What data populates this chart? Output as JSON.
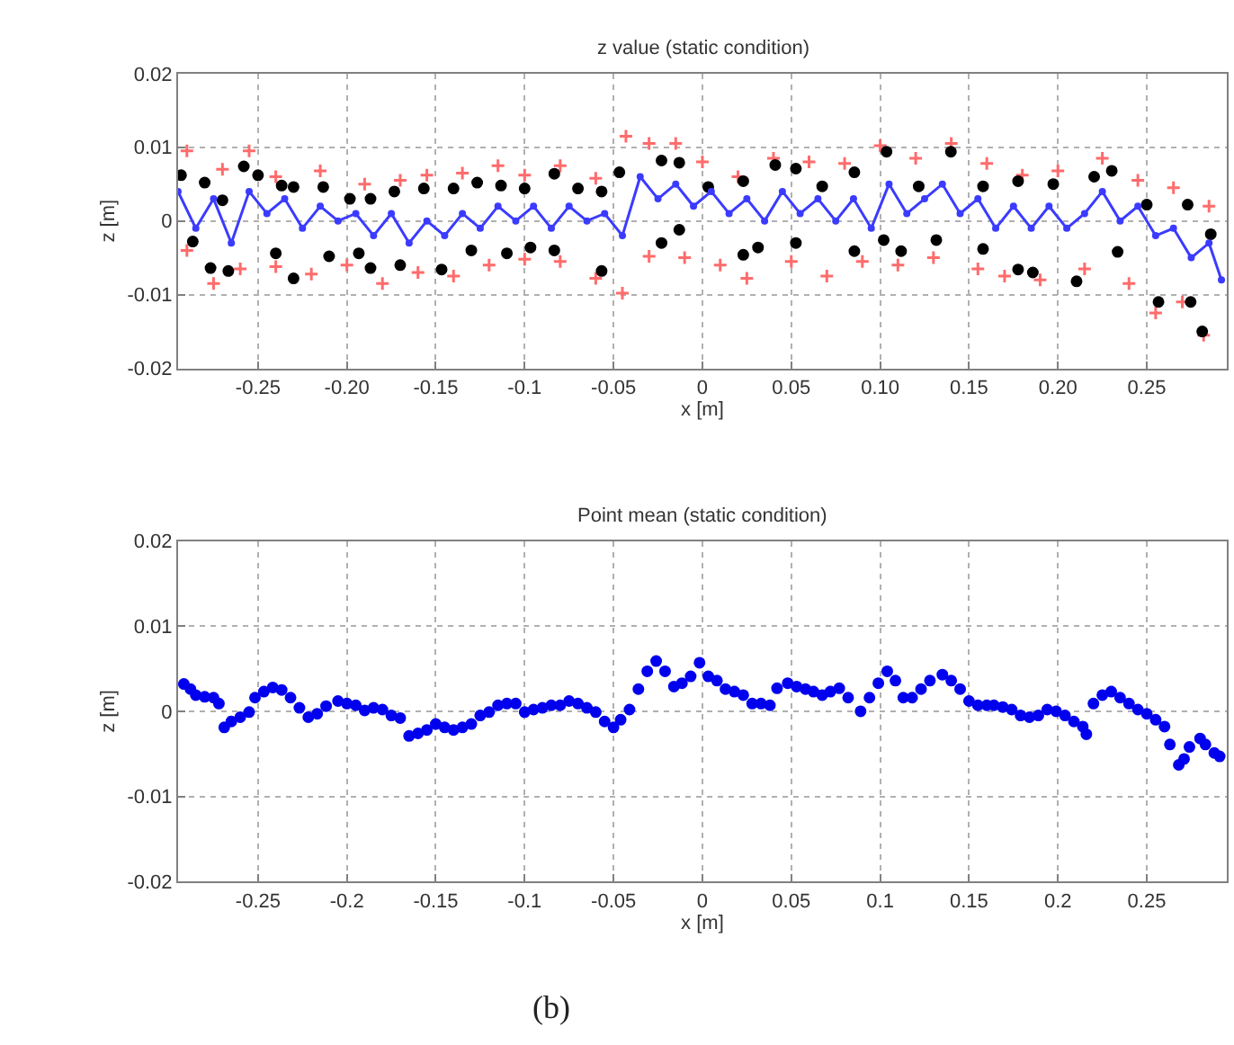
{
  "chart_data": [
    {
      "type": "scatter",
      "title": "z value (static condition)",
      "xlabel": "x [m]",
      "ylabel": "z [m]",
      "xlim": [
        -0.295,
        0.295
      ],
      "ylim": [
        -0.02,
        0.02
      ],
      "xticks": [
        -0.25,
        {
          "value": -0.2,
          "label": "-0.20"
        },
        -0.15,
        -0.1,
        -0.05,
        0,
        0.05,
        {
          "value": 0.1,
          "label": "0.10"
        },
        0.15,
        {
          "value": 0.2,
          "label": "0.20"
        },
        0.25
      ],
      "yticks": [
        -0.02,
        -0.01,
        0,
        0.01,
        0.02
      ],
      "grid": true,
      "series": [
        {
          "type": "scatter",
          "marker": "cross",
          "color": "#ff6b6b",
          "x": [
            -0.29,
            -0.27,
            -0.255,
            -0.24,
            -0.215,
            -0.19,
            -0.17,
            -0.155,
            -0.135,
            -0.115,
            -0.1,
            -0.08,
            -0.06,
            -0.043,
            -0.03,
            -0.015,
            0.0,
            0.02,
            0.04,
            0.06,
            0.08,
            0.1,
            0.12,
            0.14,
            0.16,
            0.18,
            0.2,
            0.225,
            0.245,
            0.265,
            0.285,
            -0.29,
            -0.275,
            -0.26,
            -0.24,
            -0.22,
            -0.2,
            -0.18,
            -0.16,
            -0.14,
            -0.12,
            -0.1,
            -0.08,
            -0.06,
            -0.045,
            -0.03,
            -0.01,
            0.01,
            0.025,
            0.05,
            0.07,
            0.09,
            0.11,
            0.13,
            0.155,
            0.17,
            0.19,
            0.215,
            0.24,
            0.255,
            0.27,
            0.282
          ],
          "values": [
            0.0095,
            0.007,
            0.0095,
            0.006,
            0.0068,
            0.005,
            0.0055,
            0.0062,
            0.0065,
            0.0075,
            0.0062,
            0.0075,
            0.0058,
            0.0115,
            0.0105,
            0.0105,
            0.008,
            0.006,
            0.0085,
            0.008,
            0.0078,
            0.0102,
            0.0085,
            0.0105,
            0.0078,
            0.0062,
            0.0068,
            0.0085,
            0.0055,
            0.0045,
            0.002,
            -0.004,
            -0.0085,
            -0.0065,
            -0.0062,
            -0.0072,
            -0.006,
            -0.0085,
            -0.007,
            -0.0075,
            -0.006,
            -0.0052,
            -0.0055,
            -0.0078,
            -0.0098,
            -0.0048,
            -0.005,
            -0.006,
            -0.0078,
            -0.0055,
            -0.0075,
            -0.0055,
            -0.006,
            -0.005,
            -0.0065,
            -0.0075,
            -0.008,
            -0.0065,
            -0.0085,
            -0.0125,
            -0.011,
            -0.0155
          ]
        },
        {
          "type": "scatter",
          "marker": "circle",
          "color": "#000000",
          "x": [
            -0.2933,
            -0.28,
            -0.27,
            -0.258,
            -0.25,
            -0.2367,
            -0.23,
            -0.2133,
            -0.1983,
            -0.1867,
            -0.1733,
            -0.1567,
            -0.14,
            -0.1267,
            -0.1133,
            -0.1,
            -0.0833,
            -0.07,
            -0.0567,
            -0.0467,
            -0.023,
            -0.013,
            0.0033,
            0.023,
            0.041,
            0.0526,
            0.0674,
            0.0855,
            0.1036,
            0.1217,
            0.1398,
            0.1579,
            0.1776,
            0.1974,
            0.2204,
            0.2303,
            0.25,
            0.273,
            0.286,
            -0.2867,
            -0.2767,
            -0.2667,
            -0.24,
            -0.23,
            -0.21,
            -0.1933,
            -0.1867,
            -0.17,
            -0.1467,
            -0.13,
            -0.11,
            -0.0967,
            -0.0833,
            -0.0567,
            -0.023,
            -0.013,
            0.023,
            0.0313,
            0.0526,
            0.0855,
            0.102,
            0.1118,
            0.1316,
            0.1579,
            0.1776,
            0.1859,
            0.2105,
            0.2336,
            0.2566,
            0.2747,
            0.2812
          ],
          "values": [
            0.0062,
            0.0052,
            0.0028,
            0.0074,
            0.0062,
            0.0048,
            0.0046,
            0.0046,
            0.003,
            0.003,
            0.004,
            0.0044,
            0.0044,
            0.0052,
            0.0048,
            0.0044,
            0.0064,
            0.0044,
            0.004,
            0.0066,
            0.0082,
            0.0079,
            0.0046,
            0.0054,
            0.0076,
            0.0071,
            0.0047,
            0.0066,
            0.0094,
            0.0047,
            0.0094,
            0.0047,
            0.0054,
            0.005,
            0.006,
            0.0068,
            0.0022,
            0.0022,
            -0.0018,
            -0.0028,
            -0.0064,
            -0.0068,
            -0.0044,
            -0.0078,
            -0.0048,
            -0.0044,
            -0.0064,
            -0.006,
            -0.0066,
            -0.004,
            -0.0044,
            -0.0036,
            -0.004,
            -0.0068,
            -0.003,
            -0.0012,
            -0.0046,
            -0.0036,
            -0.003,
            -0.0041,
            -0.0026,
            -0.0041,
            -0.0026,
            -0.0038,
            -0.0066,
            -0.007,
            -0.0082,
            -0.0042,
            -0.011,
            -0.011,
            -0.015
          ]
        },
        {
          "type": "line",
          "marker": "circle",
          "color": "#3b3bff",
          "x": [
            -0.295,
            -0.285,
            -0.275,
            -0.265,
            -0.255,
            -0.245,
            -0.235,
            -0.225,
            -0.215,
            -0.205,
            -0.195,
            -0.185,
            -0.175,
            -0.165,
            -0.155,
            -0.145,
            -0.135,
            -0.125,
            -0.115,
            -0.105,
            -0.095,
            -0.085,
            -0.075,
            -0.065,
            -0.055,
            -0.045,
            -0.035,
            -0.025,
            -0.015,
            -0.005,
            0.005,
            0.015,
            0.025,
            0.035,
            0.045,
            0.055,
            0.065,
            0.075,
            0.085,
            0.095,
            0.105,
            0.115,
            0.125,
            0.135,
            0.145,
            0.155,
            0.165,
            0.175,
            0.185,
            0.195,
            0.205,
            0.215,
            0.225,
            0.235,
            0.245,
            0.255,
            0.265,
            0.275,
            0.285,
            0.292
          ],
          "values": [
            0.004,
            -0.001,
            0.003,
            -0.003,
            0.004,
            0.001,
            0.003,
            -0.001,
            0.002,
            0.0,
            0.001,
            -0.002,
            0.001,
            -0.003,
            0.0,
            -0.002,
            0.001,
            -0.001,
            0.002,
            0.0,
            0.002,
            -0.001,
            0.002,
            0.0,
            0.001,
            -0.002,
            0.006,
            0.003,
            0.005,
            0.002,
            0.004,
            0.001,
            0.003,
            0.0,
            0.004,
            0.001,
            0.003,
            0.0,
            0.003,
            -0.001,
            0.005,
            0.001,
            0.003,
            0.005,
            0.001,
            0.003,
            -0.001,
            0.002,
            -0.001,
            0.002,
            -0.001,
            0.001,
            0.004,
            0.0,
            0.002,
            -0.002,
            -0.001,
            -0.005,
            -0.003,
            -0.008
          ]
        }
      ]
    },
    {
      "type": "scatter",
      "title": "Point mean (static condition)",
      "xlabel": "x [m]",
      "ylabel": "z [m]",
      "xlim": [
        -0.295,
        0.295
      ],
      "ylim": [
        -0.02,
        0.02
      ],
      "xticks": [
        -0.25,
        -0.2,
        -0.15,
        -0.1,
        -0.05,
        0,
        0.05,
        0.1,
        0.15,
        0.2,
        0.25
      ],
      "yticks": [
        -0.02,
        -0.01,
        0,
        0.01,
        0.02
      ],
      "grid": true,
      "marker": "circle",
      "annotations": [
        "(b)"
      ],
      "series": [
        {
          "color": "#0000ee",
          "x": [
            -0.2917,
            -0.288,
            -0.285,
            -0.28,
            -0.275,
            -0.272,
            -0.269,
            -0.265,
            -0.26,
            -0.255,
            -0.2517,
            -0.2467,
            -0.2417,
            -0.2367,
            -0.2317,
            -0.2267,
            -0.2217,
            -0.2167,
            -0.2117,
            -0.205,
            -0.2,
            -0.195,
            -0.19,
            -0.185,
            -0.18,
            -0.175,
            -0.17,
            -0.165,
            -0.16,
            -0.155,
            -0.15,
            -0.145,
            -0.14,
            -0.135,
            -0.13,
            -0.125,
            -0.12,
            -0.115,
            -0.11,
            -0.105,
            -0.1,
            -0.095,
            -0.09,
            -0.085,
            -0.08,
            -0.075,
            -0.07,
            -0.065,
            -0.06,
            -0.055,
            -0.05,
            -0.046,
            -0.041,
            -0.036,
            -0.031,
            -0.026,
            -0.021,
            -0.016,
            -0.0115,
            -0.0066,
            -0.0016,
            0.0033,
            0.0082,
            0.013,
            0.018,
            0.023,
            0.028,
            0.033,
            0.038,
            0.042,
            0.048,
            0.053,
            0.058,
            0.0625,
            0.0674,
            0.072,
            0.077,
            0.082,
            0.089,
            0.094,
            0.099,
            0.104,
            0.1086,
            0.113,
            0.118,
            0.123,
            0.128,
            0.135,
            0.14,
            0.145,
            0.15,
            0.155,
            0.16,
            0.164,
            0.169,
            0.174,
            0.179,
            0.184,
            0.189,
            0.194,
            0.199,
            0.204,
            0.209,
            0.214,
            0.216,
            0.22,
            0.225,
            0.23,
            0.235,
            0.24,
            0.245,
            0.25,
            0.255,
            0.26,
            0.263,
            0.268,
            0.271,
            0.274,
            0.28,
            0.283,
            0.288,
            0.291
          ],
          "values": [
            0.0032,
            0.0026,
            0.0019,
            0.0017,
            0.0016,
            0.0009,
            -0.0019,
            -0.0012,
            -0.0007,
            -0.0001,
            0.0016,
            0.0023,
            0.0028,
            0.0025,
            0.0016,
            0.0004,
            -0.0007,
            -0.0003,
            0.0006,
            0.0012,
            0.0009,
            0.0007,
            0.0001,
            0.0004,
            0.0002,
            -0.0005,
            -0.0008,
            -0.0029,
            -0.0026,
            -0.0022,
            -0.0015,
            -0.0019,
            -0.0022,
            -0.0019,
            -0.0015,
            -0.0005,
            -0.0001,
            0.0007,
            0.0009,
            0.0009,
            -0.0001,
            0.0002,
            0.0004,
            0.0007,
            0.0007,
            0.0012,
            0.0009,
            0.0004,
            -0.0001,
            -0.0012,
            -0.0019,
            -0.001,
            0.0002,
            0.0026,
            0.0047,
            0.0059,
            0.0047,
            0.0029,
            0.0033,
            0.0041,
            0.0057,
            0.0041,
            0.0036,
            0.0026,
            0.0023,
            0.0019,
            0.0009,
            0.0009,
            0.0007,
            0.0027,
            0.0033,
            0.0029,
            0.0026,
            0.0023,
            0.0019,
            0.0023,
            0.0027,
            0.0016,
            0.0,
            0.0016,
            0.0033,
            0.0047,
            0.0036,
            0.0016,
            0.0016,
            0.0026,
            0.0036,
            0.0043,
            0.0036,
            0.0026,
            0.0012,
            0.0007,
            0.0007,
            0.0007,
            0.0005,
            0.0002,
            -0.0005,
            -0.0007,
            -0.0005,
            0.0002,
            0.0,
            -0.0005,
            -0.0012,
            -0.0018,
            -0.0027,
            0.0009,
            0.0019,
            0.0023,
            0.0016,
            0.0009,
            0.0002,
            -0.0003,
            -0.001,
            -0.0018,
            -0.0039,
            -0.0063,
            -0.0056,
            -0.0042,
            -0.0032,
            -0.0039,
            -0.0049,
            -0.0053
          ]
        }
      ]
    }
  ]
}
